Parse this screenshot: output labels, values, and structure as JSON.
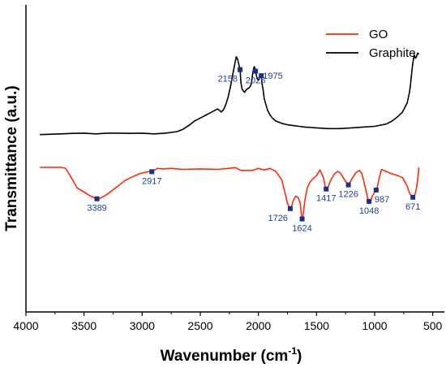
{
  "chart_data": {
    "type": "line",
    "xlabel": "Wavenumber (cm",
    "xlabel_sup": "-1",
    "xlabel_close": ")",
    "ylabel": "Transmittance (a.u.)",
    "xlim": [
      4000,
      400
    ],
    "xticks": [
      4000,
      3500,
      3000,
      2500,
      2000,
      1500,
      1000,
      500
    ],
    "legend_position": "top-right",
    "grid": false,
    "series": [
      {
        "name": "GO",
        "color": "#ff2a0a",
        "x": [
          3880,
          3700,
          3660,
          3620,
          3560,
          3500,
          3450,
          3400,
          3389,
          3360,
          3300,
          3230,
          3150,
          3100,
          3020,
          2960,
          2930,
          2917,
          2900,
          2870,
          2820,
          2750,
          2650,
          2500,
          2350,
          2260,
          2200,
          2150,
          2050,
          2000,
          1950,
          1900,
          1850,
          1800,
          1770,
          1750,
          1735,
          1726,
          1715,
          1700,
          1680,
          1660,
          1640,
          1630,
          1624,
          1615,
          1600,
          1580,
          1560,
          1540,
          1500,
          1470,
          1440,
          1425,
          1417,
          1400,
          1380,
          1350,
          1320,
          1300,
          1280,
          1260,
          1240,
          1226,
          1210,
          1190,
          1160,
          1130,
          1110,
          1090,
          1070,
          1060,
          1048,
          1035,
          1020,
          1000,
          987,
          975,
          960,
          940,
          920,
          900,
          880,
          860,
          830,
          800,
          760,
          720,
          700,
          680,
          671,
          660,
          650,
          640,
          630,
          620
        ],
        "y": [
          0.0,
          0.0,
          0.8,
          8.0,
          20.0,
          24.0,
          27.5,
          30.0,
          30.5,
          30.0,
          26.0,
          20.0,
          13.0,
          10.0,
          6.0,
          4.5,
          4.0,
          4.2,
          3.0,
          1.0,
          1.5,
          1.0,
          2.0,
          1.5,
          2.0,
          1.0,
          0.2,
          3.0,
          3.0,
          1.0,
          2.5,
          1.0,
          4.0,
          12.0,
          25.0,
          35.0,
          38.0,
          40.0,
          38.0,
          32.0,
          28.0,
          29.0,
          35.0,
          46.0,
          50.0,
          46.0,
          32.0,
          20.0,
          15.0,
          12.0,
          8.0,
          2.5,
          10.0,
          19.0,
          21.0,
          19.0,
          13.0,
          7.0,
          4.0,
          5.0,
          8.0,
          12.0,
          15.0,
          17.0,
          14.0,
          10.0,
          5.0,
          3.0,
          6.0,
          15.0,
          25.0,
          30.0,
          33.0,
          33.0,
          28.0,
          24.0,
          22.0,
          18.0,
          10.0,
          2.0,
          3.0,
          4.0,
          5.0,
          6.0,
          7.0,
          8.0,
          10.0,
          18.0,
          25.0,
          28.0,
          29.0,
          28.0,
          25.0,
          20.0,
          13.0,
          0.0
        ]
      },
      {
        "name": "Graphite",
        "color": "#000000",
        "x": [
          3880,
          3700,
          3600,
          3500,
          3400,
          3300,
          3200,
          3100,
          3000,
          2900,
          2800,
          2700,
          2650,
          2600,
          2550,
          2500,
          2450,
          2400,
          2350,
          2320,
          2300,
          2280,
          2260,
          2240,
          2220,
          2200,
          2190,
          2180,
          2170,
          2160,
          2158,
          2150,
          2140,
          2120,
          2100,
          2080,
          2070,
          2060,
          2050,
          2040,
          2035,
          2030,
          2025,
          2020,
          2010,
          2000,
          1995,
          1990,
          1985,
          1980,
          1975,
          1970,
          1960,
          1950,
          1940,
          1920,
          1900,
          1880,
          1850,
          1800,
          1750,
          1700,
          1650,
          1600,
          1500,
          1400,
          1300,
          1200,
          1100,
          1000,
          900,
          850,
          800,
          760,
          740,
          720,
          700,
          690,
          680,
          670,
          660,
          650,
          640,
          630,
          620
        ],
        "y": [
          52.0,
          51.5,
          51.2,
          51.0,
          51.5,
          51.0,
          51.0,
          51.2,
          51.0,
          51.5,
          51.0,
          50.0,
          48.5,
          46.0,
          43.0,
          41.0,
          39.0,
          37.0,
          35.0,
          37.0,
          35.5,
          32.0,
          27.0,
          20.0,
          12.0,
          4.0,
          0.5,
          2.0,
          5.0,
          8.0,
          9.0,
          18.0,
          22.0,
          24.0,
          22.0,
          21.0,
          20.0,
          18.0,
          12.0,
          8.0,
          7.0,
          8.0,
          10.0,
          12.0,
          15.0,
          16.0,
          15.5,
          13.0,
          12.0,
          12.0,
          13.0,
          18.0,
          22.0,
          28.0,
          31.0,
          36.0,
          39.0,
          41.0,
          43.0,
          44.5,
          45.5,
          46.0,
          46.5,
          47.0,
          47.5,
          48.0,
          48.0,
          47.5,
          47.0,
          46.5,
          45.0,
          43.0,
          40.0,
          37.0,
          34.0,
          31.0,
          24.0,
          18.0,
          10.0,
          4.0,
          -1.0,
          1.5,
          0.5,
          -2.0,
          -1.0
        ]
      }
    ],
    "markers": [
      {
        "series": "GO",
        "x": 3389,
        "y": 30.5,
        "label": "3389",
        "pos": "below"
      },
      {
        "series": "GO",
        "x": 2917,
        "y": 4.2,
        "label": "2917",
        "pos": "below"
      },
      {
        "series": "GO",
        "x": 1726,
        "y": 40.0,
        "label": "1726",
        "pos": "below-left"
      },
      {
        "series": "GO",
        "x": 1624,
        "y": 50.0,
        "label": "1624",
        "pos": "below"
      },
      {
        "series": "GO",
        "x": 1417,
        "y": 21.0,
        "label": "1417",
        "pos": "below"
      },
      {
        "series": "GO",
        "x": 1226,
        "y": 17.0,
        "label": "1226",
        "pos": "below"
      },
      {
        "series": "GO",
        "x": 1048,
        "y": 33.0,
        "label": "1048",
        "pos": "below"
      },
      {
        "series": "GO",
        "x": 987,
        "y": 22.0,
        "label": "987",
        "pos": "below-right"
      },
      {
        "series": "GO",
        "x": 671,
        "y": 29.0,
        "label": "671",
        "pos": "below"
      },
      {
        "series": "Graphite",
        "x": 2158,
        "y": 9.0,
        "label": "2158",
        "pos": "below-left"
      },
      {
        "series": "Graphite",
        "x": 2025,
        "y": 10.0,
        "label": "2025",
        "pos": "below"
      },
      {
        "series": "Graphite",
        "x": 1975,
        "y": 13.0,
        "label": "1975",
        "pos": "right"
      }
    ]
  }
}
